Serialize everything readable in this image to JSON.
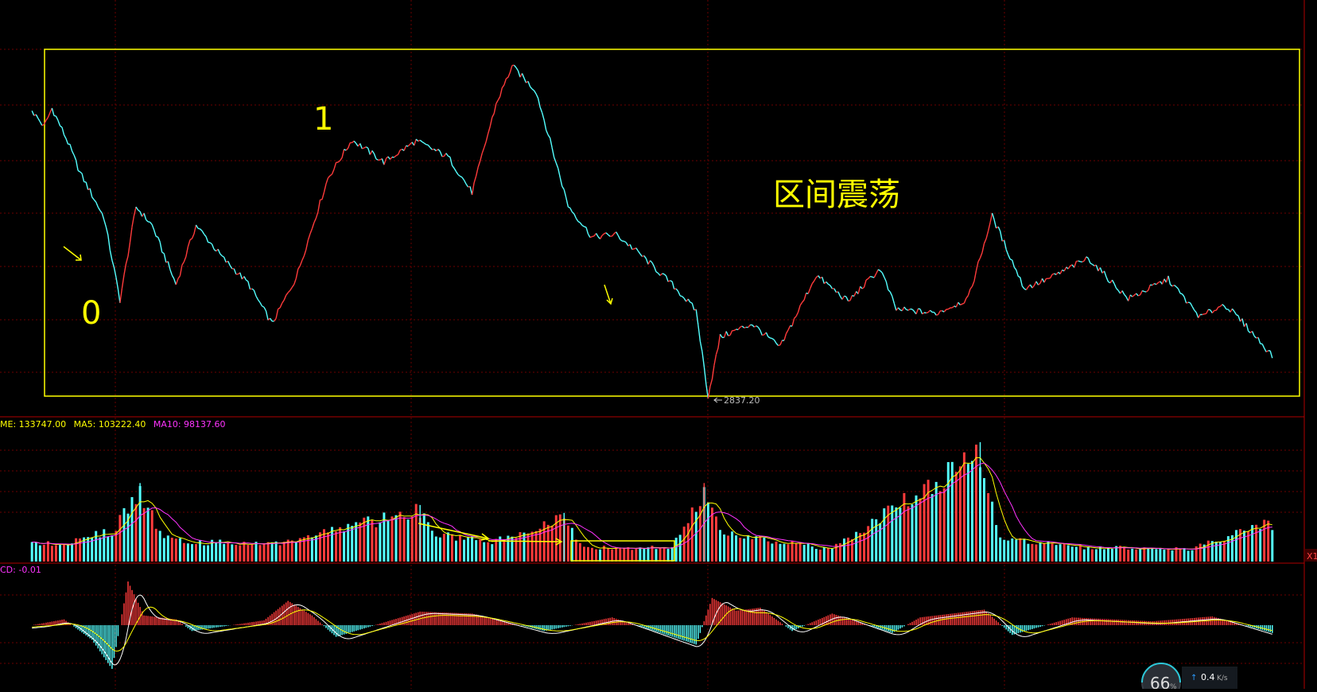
{
  "annotations": {
    "wave_start_label": "0",
    "wave_top_label": "1",
    "range_label": "区间震荡",
    "low_price_label": "2837.20"
  },
  "volume_panel": {
    "vol_label": "ME: 133747.00",
    "ma5_label": "MA5: 103222.40",
    "ma10_label": "MA10: 98137.60",
    "scale_label": "X1"
  },
  "macd_panel": {
    "macd_label": "CD: -0.01"
  },
  "speed_widget": {
    "percent": "66",
    "percent_unit": "%",
    "speed_value": "0.4",
    "speed_unit": "K/s"
  },
  "colors": {
    "up": "#ff3b3b",
    "down": "#54ffff",
    "annotation": "#ffff00",
    "grid": "#6b0000",
    "ma5": "#ffff00",
    "ma10": "#ff33ff"
  },
  "chart_data": {
    "type": "line",
    "price_series": [
      {
        "t": 0,
        "v": 3047
      },
      {
        "t": 3,
        "v": 3035
      },
      {
        "t": 5,
        "v": 3049
      },
      {
        "t": 9,
        "v": 3023
      },
      {
        "t": 12,
        "v": 3000
      },
      {
        "t": 18,
        "v": 2966
      },
      {
        "t": 22,
        "v": 2903
      },
      {
        "t": 26,
        "v": 2974
      },
      {
        "t": 30,
        "v": 2960
      },
      {
        "t": 36,
        "v": 2915
      },
      {
        "t": 41,
        "v": 2960
      },
      {
        "t": 48,
        "v": 2934
      },
      {
        "t": 54,
        "v": 2916
      },
      {
        "t": 60,
        "v": 2885
      },
      {
        "t": 66,
        "v": 2920
      },
      {
        "t": 74,
        "v": 2996
      },
      {
        "t": 80,
        "v": 3025
      },
      {
        "t": 88,
        "v": 3008
      },
      {
        "t": 96,
        "v": 3024
      },
      {
        "t": 104,
        "v": 3012
      },
      {
        "t": 110,
        "v": 2985
      },
      {
        "t": 116,
        "v": 3052
      },
      {
        "t": 120,
        "v": 3081
      },
      {
        "t": 126,
        "v": 3062
      },
      {
        "t": 134,
        "v": 2975
      },
      {
        "t": 140,
        "v": 2951
      },
      {
        "t": 146,
        "v": 2953
      },
      {
        "t": 152,
        "v": 2938
      },
      {
        "t": 160,
        "v": 2915
      },
      {
        "t": 166,
        "v": 2895
      },
      {
        "t": 169,
        "v": 2830
      },
      {
        "t": 172,
        "v": 2875
      },
      {
        "t": 180,
        "v": 2885
      },
      {
        "t": 187,
        "v": 2867
      },
      {
        "t": 196,
        "v": 2922
      },
      {
        "t": 204,
        "v": 2902
      },
      {
        "t": 212,
        "v": 2927
      },
      {
        "t": 216,
        "v": 2896
      },
      {
        "t": 226,
        "v": 2893
      },
      {
        "t": 234,
        "v": 2904
      },
      {
        "t": 240,
        "v": 2967
      },
      {
        "t": 248,
        "v": 2912
      },
      {
        "t": 254,
        "v": 2919
      },
      {
        "t": 264,
        "v": 2935
      },
      {
        "t": 274,
        "v": 2904
      },
      {
        "t": 284,
        "v": 2919
      },
      {
        "t": 292,
        "v": 2890
      },
      {
        "t": 298,
        "v": 2900
      },
      {
        "t": 303,
        "v": 2885
      },
      {
        "t": 310,
        "v": 2861
      }
    ],
    "volume_bars": [
      {
        "t": 0,
        "v": 60000
      },
      {
        "t": 10,
        "v": 70000
      },
      {
        "t": 16,
        "v": 95000
      },
      {
        "t": 20,
        "v": 110000
      },
      {
        "t": 27,
        "v": 250000
      },
      {
        "t": 32,
        "v": 95000
      },
      {
        "t": 40,
        "v": 70000
      },
      {
        "t": 60,
        "v": 62000
      },
      {
        "t": 97,
        "v": 180000
      },
      {
        "t": 100,
        "v": 95000
      },
      {
        "t": 115,
        "v": 70000
      },
      {
        "t": 133,
        "v": 155000
      },
      {
        "t": 138,
        "v": 50000
      },
      {
        "t": 150,
        "v": 48000
      },
      {
        "t": 160,
        "v": 52000
      },
      {
        "t": 168,
        "v": 250000
      },
      {
        "t": 172,
        "v": 110000
      },
      {
        "t": 185,
        "v": 70000
      },
      {
        "t": 200,
        "v": 45000
      },
      {
        "t": 237,
        "v": 380000
      },
      {
        "t": 242,
        "v": 90000
      },
      {
        "t": 260,
        "v": 50000
      },
      {
        "t": 290,
        "v": 45000
      },
      {
        "t": 309,
        "v": 133747
      }
    ],
    "macd_hist": [
      {
        "t": 0,
        "v": 0.0
      },
      {
        "t": 8,
        "v": 0.6
      },
      {
        "t": 15,
        "v": -1.5
      },
      {
        "t": 20,
        "v": -4.5
      },
      {
        "t": 24,
        "v": 4.5
      },
      {
        "t": 28,
        "v": 1.0
      },
      {
        "t": 36,
        "v": 0.6
      },
      {
        "t": 40,
        "v": -0.6
      },
      {
        "t": 58,
        "v": 0.5
      },
      {
        "t": 64,
        "v": 2.5
      },
      {
        "t": 70,
        "v": 1.0
      },
      {
        "t": 76,
        "v": -1.2
      },
      {
        "t": 97,
        "v": 1.4
      },
      {
        "t": 110,
        "v": 1.2
      },
      {
        "t": 128,
        "v": -0.6
      },
      {
        "t": 145,
        "v": 0.8
      },
      {
        "t": 166,
        "v": -2.0
      },
      {
        "t": 170,
        "v": 2.8
      },
      {
        "t": 176,
        "v": 1.5
      },
      {
        "t": 182,
        "v": 1.8
      },
      {
        "t": 190,
        "v": -0.6
      },
      {
        "t": 200,
        "v": 1.2
      },
      {
        "t": 215,
        "v": -0.8
      },
      {
        "t": 222,
        "v": 0.8
      },
      {
        "t": 238,
        "v": 1.6
      },
      {
        "t": 245,
        "v": -1.0
      },
      {
        "t": 260,
        "v": 0.8
      },
      {
        "t": 280,
        "v": 0.4
      },
      {
        "t": 295,
        "v": 0.9
      },
      {
        "t": 310,
        "v": -0.8
      }
    ],
    "price_ylim": [
      2830,
      3095
    ],
    "volume_ylim": [
      0,
      400000
    ],
    "macd_ylim": [
      -5,
      5
    ],
    "xlim": [
      -8,
      318
    ]
  }
}
